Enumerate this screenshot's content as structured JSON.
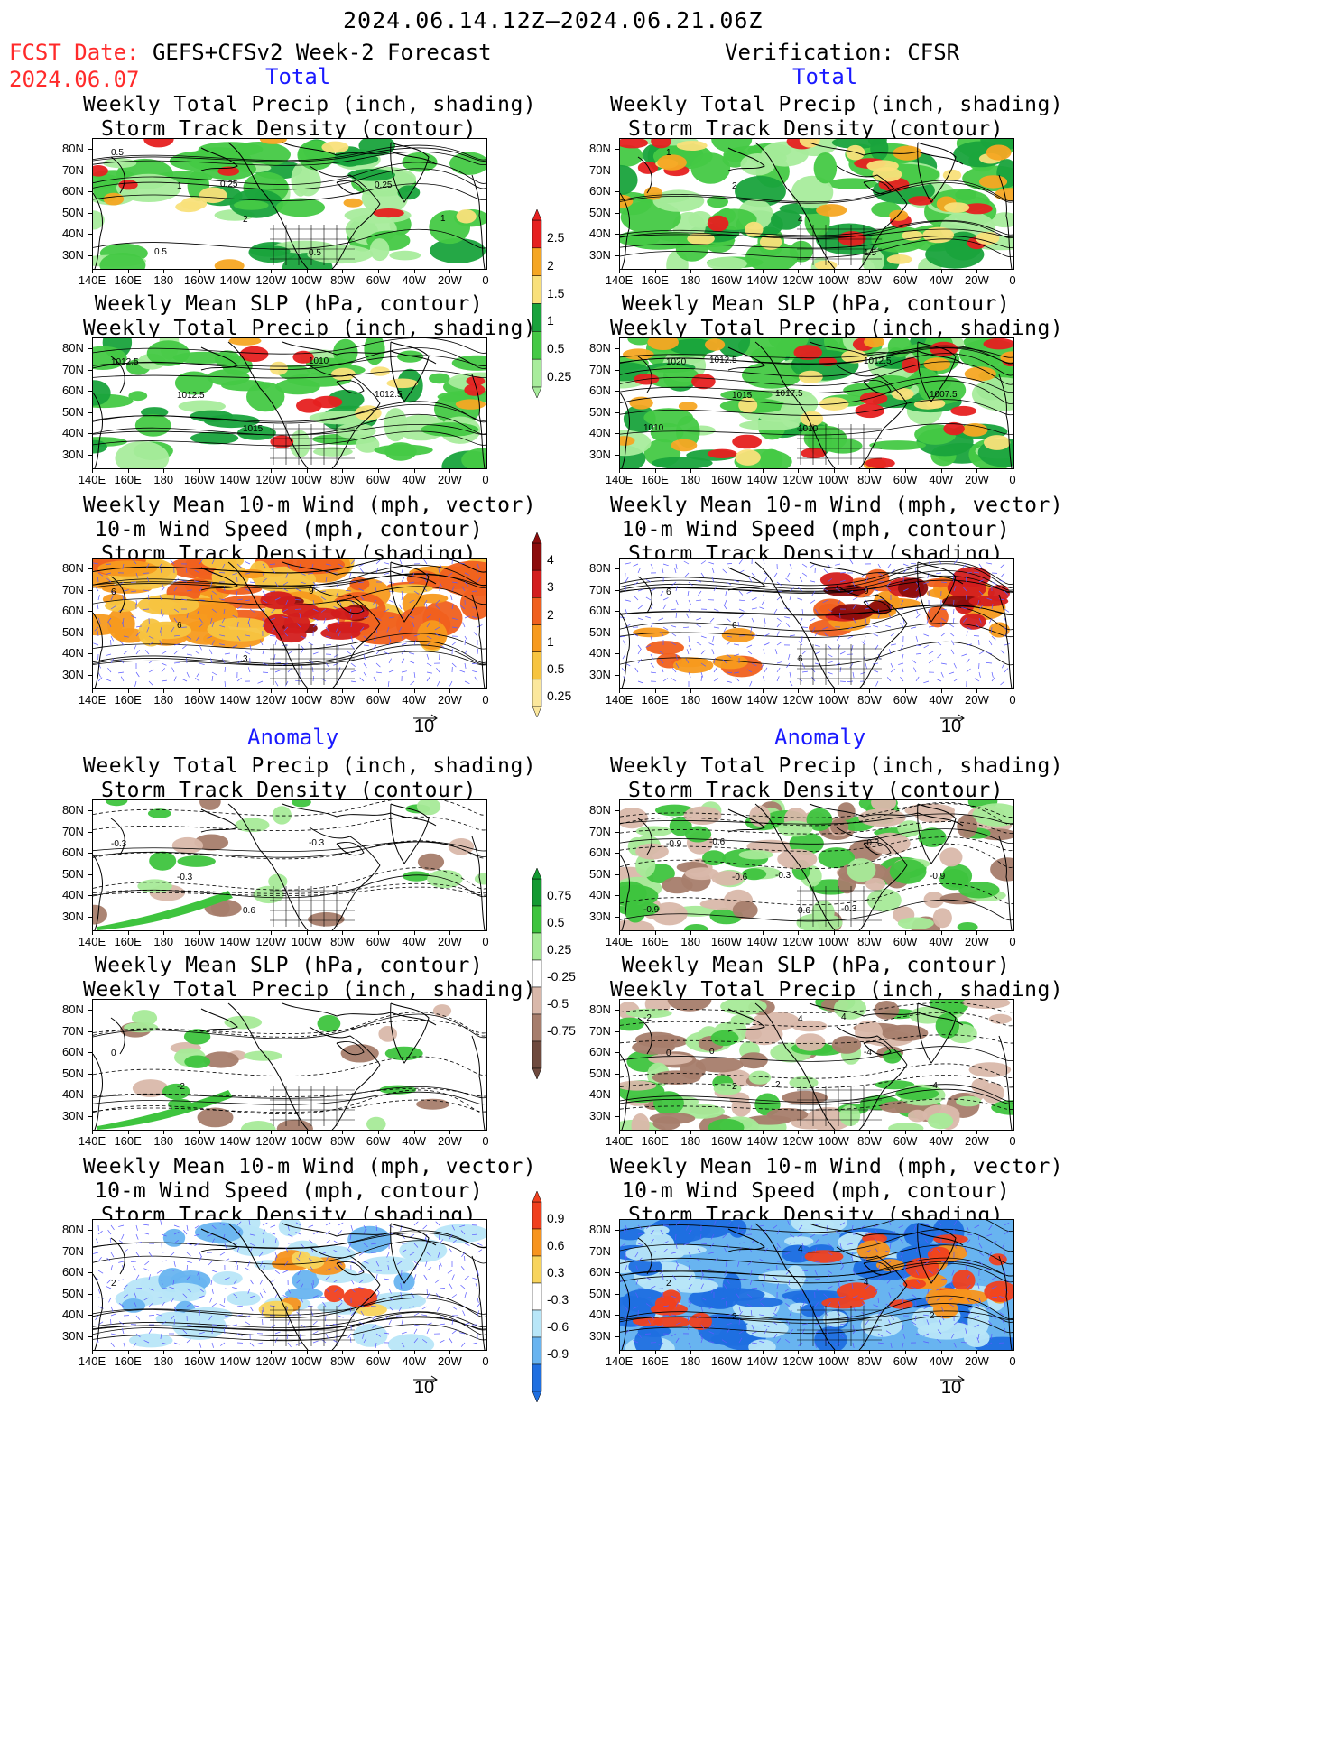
{
  "header": {
    "period": "2024.06.14.12Z—2024.06.21.06Z",
    "fcst_label": "FCST Date:",
    "fcst_model": "GEFS+CFSv2 Week-2 Forecast",
    "fcst_date": "2024.06.07",
    "verification": "Verification: CFSR"
  },
  "sections": {
    "total": "Total",
    "anomaly": "Anomaly"
  },
  "titles": {
    "precip_storm": [
      "Weekly Total Precip (inch, shading)",
      "Storm Track Density (contour)"
    ],
    "slp_precip": [
      "Weekly Mean SLP (hPa, contour)",
      "Weekly Total Precip (inch, shading)"
    ],
    "wind_storm": [
      "Weekly Mean 10-m Wind (mph, vector)",
      "10-m Wind Speed (mph, contour)",
      "Storm Track Density (shading)"
    ]
  },
  "axes": {
    "lat": [
      "80N",
      "70N",
      "60N",
      "50N",
      "40N",
      "30N"
    ],
    "lon": [
      "140E",
      "160E",
      "180",
      "160W",
      "140W",
      "120W",
      "100W",
      "80W",
      "60W",
      "40W",
      "20W",
      "0"
    ]
  },
  "vector_ref": "10",
  "colorbars": {
    "precip_total": {
      "labels": [
        "2.5",
        "2",
        "1.5",
        "1",
        "0.5",
        "0.25"
      ],
      "colors": [
        "#e62020",
        "#f5a623",
        "#f9e07a",
        "#19a33c",
        "#45c945",
        "#a8ec9c"
      ]
    },
    "storm_total": {
      "labels": [
        "4",
        "3",
        "2",
        "1",
        "0.5",
        "0.25"
      ],
      "colors": [
        "#8c0c0c",
        "#d31e1e",
        "#f0601e",
        "#f79a1e",
        "#f7c440",
        "#fbe79c"
      ]
    },
    "precip_anom": {
      "labels": [
        "0.75",
        "0.5",
        "0.25",
        "-0.25",
        "-0.5",
        "-0.75"
      ],
      "colors": [
        "#139a32",
        "#3ec43e",
        "#a6ea98",
        "#ffffff",
        "#d9b8aa",
        "#a67d6c",
        "#6e4a3e"
      ]
    },
    "storm_anom": {
      "labels": [
        "0.9",
        "0.6",
        "0.3",
        "-0.3",
        "-0.6",
        "-0.9"
      ],
      "colors": [
        "#f0401e",
        "#f7941e",
        "#f8d45c",
        "#ffffff",
        "#b8e6f8",
        "#68b4f0",
        "#1f6fe0"
      ]
    }
  },
  "panel_labels": {
    "fcst_precip_storm": [
      "0.5",
      "1",
      "2",
      "0.5",
      "0.25",
      "1",
      "0.5",
      "0.25"
    ],
    "fcst_slp": [
      "1012.5",
      "1012.5",
      "1015",
      "1010",
      "1012.5"
    ],
    "fcst_wind": [
      "6",
      "6",
      "3",
      "9"
    ],
    "obs_precip_storm": [
      "1",
      "2",
      "4",
      "1.5"
    ],
    "obs_slp": [
      "1020",
      "1015",
      "1010",
      "1012.5",
      "1007.5",
      "1010",
      "1012.5",
      "1017.5"
    ],
    "obs_wind": [
      "6",
      "6",
      "6",
      "9"
    ],
    "fcst_anom_precip": [
      "-0.3",
      "-0.3",
      "0.6",
      "-0.3"
    ],
    "obs_anom_precip": [
      "-0.9",
      "-0.6",
      "0.6",
      "-0.3",
      "-0.9",
      "-0.9",
      "-0.6",
      "-0.3",
      "-0.3"
    ],
    "fcst_anom_slp": [
      "0",
      "-2"
    ],
    "obs_anom_slp": [
      "0",
      "2",
      "4",
      "-4",
      "-4",
      "-2",
      "0",
      "2",
      "4"
    ],
    "fcst_anom_wind": [
      "2"
    ],
    "obs_anom_wind": [
      "2",
      "2",
      "4",
      "4",
      "2"
    ]
  }
}
